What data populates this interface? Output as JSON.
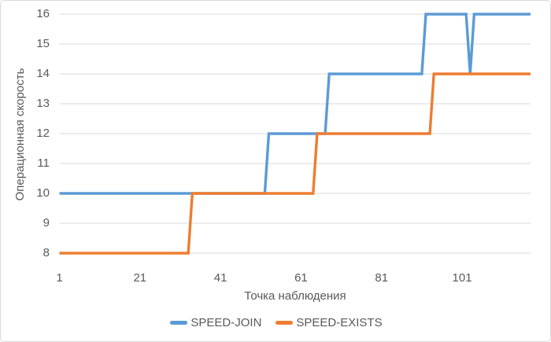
{
  "chart_data": {
    "type": "line",
    "subtype": "step-series",
    "title": "",
    "xlabel": "Точка наблюдения",
    "ylabel": "Операционная скорость",
    "xlim": [
      1,
      118
    ],
    "ylim": [
      8,
      16
    ],
    "xticks": [
      1,
      21,
      41,
      61,
      81,
      101
    ],
    "yticks": [
      16,
      15,
      14,
      13,
      12,
      11,
      10,
      9,
      8
    ],
    "grid": "horizontal-major",
    "legend_position": "bottom",
    "series": [
      {
        "name": "SPEED-JOIN",
        "color": "#5B9BD5",
        "steps": [
          {
            "from": 1,
            "to": 52,
            "value": 10
          },
          {
            "from": 53,
            "to": 67,
            "value": 12
          },
          {
            "from": 68,
            "to": 91,
            "value": 14
          },
          {
            "from": 92,
            "to": 102,
            "value": 16
          },
          {
            "from": 103,
            "to": 103,
            "value": 14
          },
          {
            "from": 104,
            "to": 118,
            "value": 16
          }
        ]
      },
      {
        "name": "SPEED-EXISTS",
        "color": "#ED7D31",
        "steps": [
          {
            "from": 1,
            "to": 33,
            "value": 8
          },
          {
            "from": 34,
            "to": 64,
            "value": 10
          },
          {
            "from": 65,
            "to": 93,
            "value": 12
          },
          {
            "from": 94,
            "to": 118,
            "value": 14
          }
        ]
      }
    ]
  },
  "colors": {
    "background": "#FFFFFF",
    "frame_border": "#D9D9D9",
    "gridline": "#D9D9D9",
    "axis_text": "#595959"
  }
}
